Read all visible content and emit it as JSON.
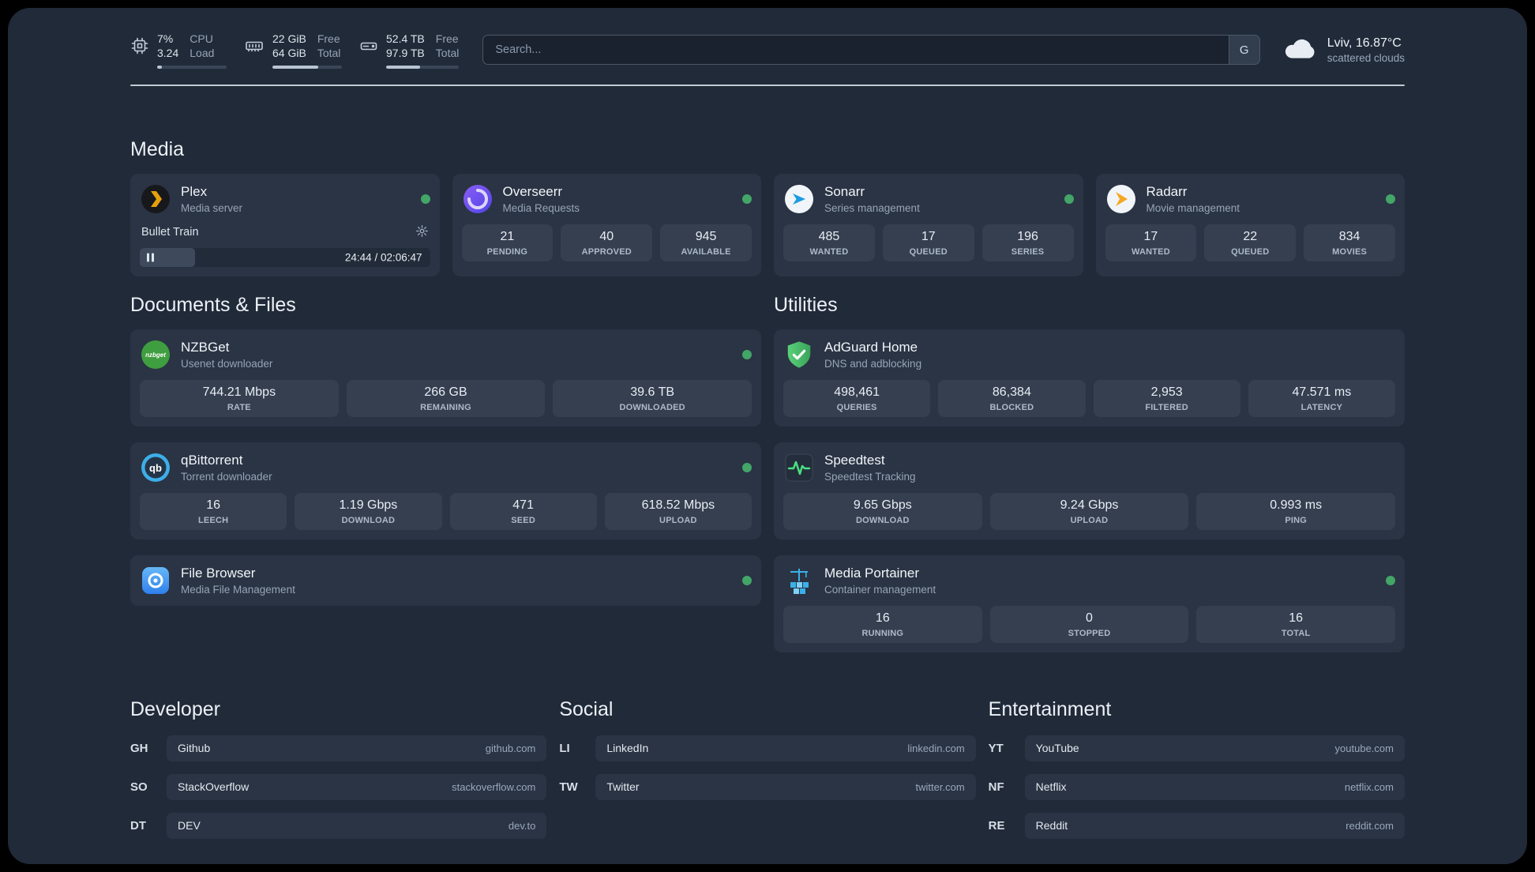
{
  "topbar": {
    "cpu": {
      "values": [
        "7%",
        "3.24"
      ],
      "labels": [
        "CPU",
        "Load"
      ],
      "progress": 7
    },
    "memory": {
      "values": [
        "22 GiB",
        "64 GiB"
      ],
      "labels": [
        "Free",
        "Total"
      ],
      "progress": 66
    },
    "disk": {
      "values": [
        "52.4 TB",
        "97.9 TB"
      ],
      "labels": [
        "Free",
        "Total"
      ],
      "progress": 47
    },
    "search": {
      "placeholder": "Search...",
      "button": "G"
    },
    "weather": {
      "location": "Lviv, 16.87°C",
      "condition": "scattered clouds"
    }
  },
  "sections": {
    "media": "Media",
    "documents": "Documents & Files",
    "utilities": "Utilities",
    "developer": "Developer",
    "social": "Social",
    "entertainment": "Entertainment"
  },
  "services": {
    "plex": {
      "name": "Plex",
      "subtitle": "Media server",
      "status": "online",
      "now_playing": {
        "title": "Bullet Train",
        "time": "24:44 / 02:06:47",
        "progress": 19
      }
    },
    "overseerr": {
      "name": "Overseerr",
      "subtitle": "Media Requests",
      "status": "online",
      "stats": [
        {
          "value": "21",
          "label": "PENDING"
        },
        {
          "value": "40",
          "label": "APPROVED"
        },
        {
          "value": "945",
          "label": "AVAILABLE"
        }
      ]
    },
    "sonarr": {
      "name": "Sonarr",
      "subtitle": "Series management",
      "status": "online",
      "stats": [
        {
          "value": "485",
          "label": "WANTED"
        },
        {
          "value": "17",
          "label": "QUEUED"
        },
        {
          "value": "196",
          "label": "SERIES"
        }
      ]
    },
    "radarr": {
      "name": "Radarr",
      "subtitle": "Movie management",
      "status": "online",
      "stats": [
        {
          "value": "17",
          "label": "WANTED"
        },
        {
          "value": "22",
          "label": "QUEUED"
        },
        {
          "value": "834",
          "label": "MOVIES"
        }
      ]
    },
    "nzbget": {
      "name": "NZBGet",
      "subtitle": "Usenet downloader",
      "status": "online",
      "icon_text": "nzbget",
      "stats": [
        {
          "value": "744.21 Mbps",
          "label": "RATE"
        },
        {
          "value": "266 GB",
          "label": "REMAINING"
        },
        {
          "value": "39.6 TB",
          "label": "DOWNLOADED"
        }
      ]
    },
    "qbittorrent": {
      "name": "qBittorrent",
      "subtitle": "Torrent downloader",
      "status": "online",
      "icon_text": "qb",
      "stats": [
        {
          "value": "16",
          "label": "LEECH"
        },
        {
          "value": "1.19 Gbps",
          "label": "DOWNLOAD"
        },
        {
          "value": "471",
          "label": "SEED"
        },
        {
          "value": "618.52 Mbps",
          "label": "UPLOAD"
        }
      ]
    },
    "filebrowser": {
      "name": "File Browser",
      "subtitle": "Media File Management",
      "status": "online"
    },
    "adguard": {
      "name": "AdGuard Home",
      "subtitle": "DNS and adblocking",
      "stats": [
        {
          "value": "498,461",
          "label": "QUERIES"
        },
        {
          "value": "86,384",
          "label": "BLOCKED"
        },
        {
          "value": "2,953",
          "label": "FILTERED"
        },
        {
          "value": "47.571 ms",
          "label": "LATENCY"
        }
      ]
    },
    "speedtest": {
      "name": "Speedtest",
      "subtitle": "Speedtest Tracking",
      "stats": [
        {
          "value": "9.65 Gbps",
          "label": "DOWNLOAD"
        },
        {
          "value": "9.24 Gbps",
          "label": "UPLOAD"
        },
        {
          "value": "0.993 ms",
          "label": "PING"
        }
      ]
    },
    "portainer": {
      "name": "Media Portainer",
      "subtitle": "Container management",
      "status": "online",
      "stats": [
        {
          "value": "16",
          "label": "RUNNING"
        },
        {
          "value": "0",
          "label": "STOPPED"
        },
        {
          "value": "16",
          "label": "TOTAL"
        }
      ]
    }
  },
  "bookmarks": {
    "developer": [
      {
        "abbr": "GH",
        "name": "Github",
        "domain": "github.com"
      },
      {
        "abbr": "SO",
        "name": "StackOverflow",
        "domain": "stackoverflow.com"
      },
      {
        "abbr": "DT",
        "name": "DEV",
        "domain": "dev.to"
      }
    ],
    "social": [
      {
        "abbr": "LI",
        "name": "LinkedIn",
        "domain": "linkedin.com"
      },
      {
        "abbr": "TW",
        "name": "Twitter",
        "domain": "twitter.com"
      }
    ],
    "entertainment": [
      {
        "abbr": "YT",
        "name": "YouTube",
        "domain": "youtube.com"
      },
      {
        "abbr": "NF",
        "name": "Netflix",
        "domain": "netflix.com"
      },
      {
        "abbr": "RE",
        "name": "Reddit",
        "domain": "reddit.com"
      }
    ]
  },
  "colors": {
    "background": "#202a39",
    "card": "#2a3444",
    "stat_block": "#353f50",
    "status_online": "#43a567",
    "speedtest_accent": "#4ade80",
    "plex_accent": "#e5a00d"
  }
}
